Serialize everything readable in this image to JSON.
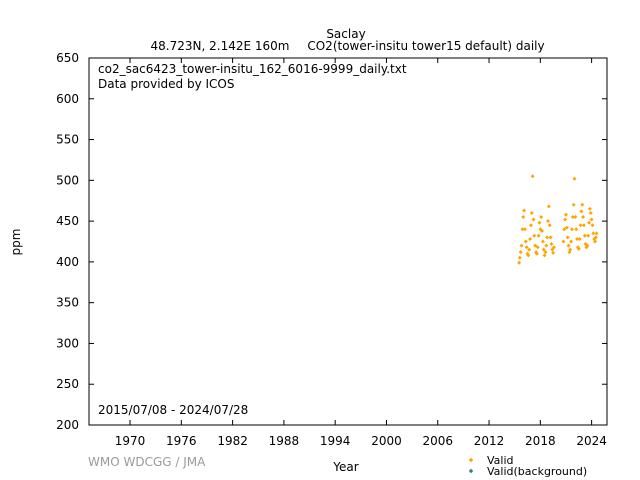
{
  "header": {
    "station": "Saclay",
    "location": "48.723N, 2.142E 160m",
    "description": "CO2(tower-insitu tower15 default) daily"
  },
  "file_label": "co2_sac6423_tower-insitu_162_6016-9999_daily.txt",
  "provider": "Data provided by ICOS",
  "date_range": "2015/07/08 - 2024/07/28",
  "watermark": "WMO WDCGG / JMA",
  "legend": {
    "valid": "Valid",
    "background": "Valid(background)",
    "valid_color": "#FFA500",
    "background_color": "#2E8B57"
  },
  "chart_data": {
    "type": "scatter",
    "xlabel": "Year",
    "ylabel": "ppm",
    "xlim": [
      1965.2,
      2025.8
    ],
    "ylim": [
      200,
      650
    ],
    "xticks": [
      1970,
      1976,
      1982,
      1988,
      1994,
      2000,
      2006,
      2012,
      2018,
      2024
    ],
    "yticks": [
      200,
      250,
      300,
      350,
      400,
      450,
      500,
      550,
      600,
      650
    ],
    "legend_position": "bottom-right",
    "grid": false,
    "series": [
      {
        "name": "Valid",
        "color": "#FFA500",
        "marker": "diamond",
        "x": [
          2015.52,
          2015.6,
          2015.7,
          2015.8,
          2015.9,
          2016.0,
          2016.1,
          2016.2,
          2016.3,
          2016.4,
          2016.5,
          2016.6,
          2016.7,
          2016.8,
          2016.9,
          2017.0,
          2017.1,
          2017.2,
          2017.3,
          2017.4,
          2017.5,
          2017.6,
          2017.7,
          2017.8,
          2017.9,
          2018.0,
          2018.1,
          2018.2,
          2018.3,
          2018.4,
          2018.5,
          2018.6,
          2018.7,
          2018.8,
          2018.9,
          2019.0,
          2019.1,
          2019.2,
          2019.3,
          2019.4,
          2019.5,
          2019.6,
          2020.7,
          2020.8,
          2020.9,
          2021.0,
          2021.1,
          2021.2,
          2021.3,
          2021.4,
          2021.5,
          2021.6,
          2021.7,
          2021.8,
          2021.9,
          2022.0,
          2022.1,
          2022.2,
          2022.3,
          2022.4,
          2022.5,
          2022.6,
          2022.7,
          2022.8,
          2022.9,
          2023.0,
          2023.1,
          2023.2,
          2023.3,
          2023.4,
          2023.5,
          2023.6,
          2023.7,
          2023.8,
          2023.9,
          2024.0,
          2024.1,
          2024.2,
          2024.3,
          2024.4,
          2024.5,
          2024.57
        ],
        "y": [
          399,
          405,
          412,
          420,
          440,
          455,
          463,
          440,
          425,
          418,
          410,
          408,
          415,
          428,
          445,
          460,
          505,
          452,
          432,
          420,
          412,
          410,
          418,
          432,
          448,
          440,
          455,
          438,
          425,
          415,
          408,
          412,
          420,
          430,
          450,
          468,
          445,
          430,
          422,
          415,
          411,
          418,
          425,
          440,
          452,
          458,
          442,
          430,
          420,
          412,
          415,
          425,
          440,
          455,
          470,
          502,
          455,
          440,
          428,
          418,
          416,
          428,
          445,
          462,
          470,
          455,
          445,
          432,
          422,
          418,
          420,
          432,
          448,
          465,
          460,
          452,
          445,
          435,
          428,
          425,
          430,
          435
        ]
      },
      {
        "name": "Valid(background)",
        "color": "#2E8B57",
        "marker": "diamond",
        "x": [],
        "y": []
      }
    ]
  }
}
